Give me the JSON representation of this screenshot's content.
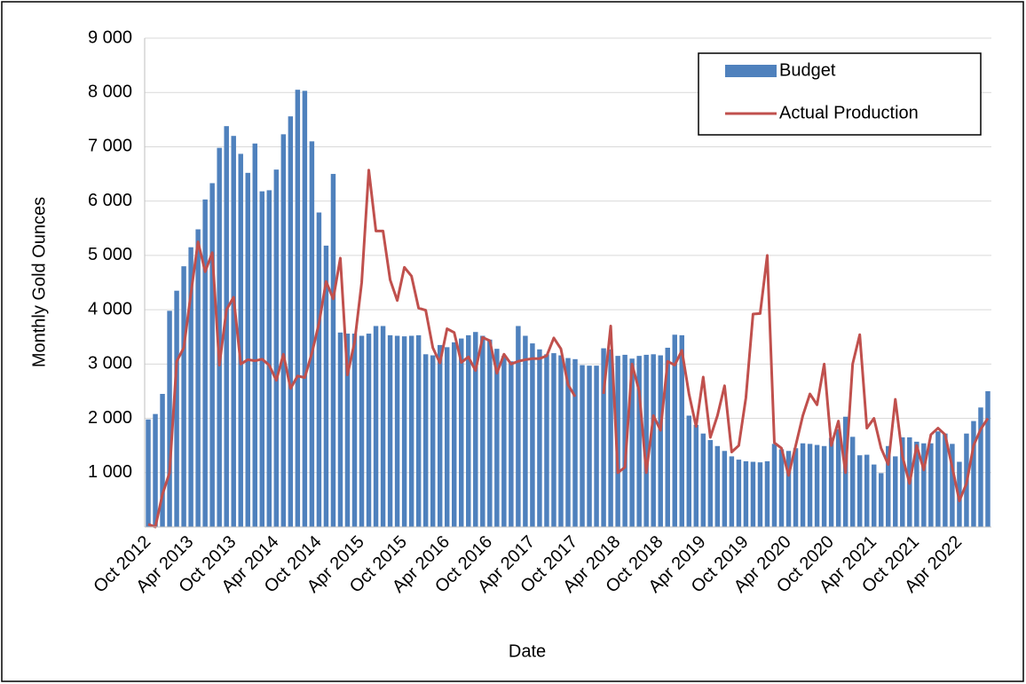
{
  "chart_data": {
    "type": "bar-line",
    "x_label": "Date",
    "y_label": "Monthly Gold Ounces",
    "categories": [
      "Oct 2012",
      null,
      null,
      null,
      null,
      null,
      "Apr 2013",
      null,
      null,
      null,
      null,
      null,
      "Oct 2013",
      null,
      null,
      null,
      null,
      null,
      "Apr 2014",
      null,
      null,
      null,
      null,
      null,
      "Oct 2014",
      null,
      null,
      null,
      null,
      null,
      "Apr 2015",
      null,
      null,
      null,
      null,
      null,
      "Oct 2015",
      null,
      null,
      null,
      null,
      null,
      "Apr 2016",
      null,
      null,
      null,
      null,
      null,
      "Oct 2016",
      null,
      null,
      null,
      null,
      null,
      "Apr 2017",
      null,
      null,
      null,
      null,
      null,
      "Oct 2017",
      null,
      null,
      null,
      null,
      null,
      "Apr 2018",
      null,
      null,
      null,
      null,
      null,
      "Oct 2018",
      null,
      null,
      null,
      null,
      null,
      "Apr 2019",
      null,
      null,
      null,
      null,
      null,
      "Oct 2019",
      null,
      null,
      null,
      null,
      null,
      "Apr 2020",
      null,
      null,
      null,
      null,
      null,
      "Oct 2020",
      null,
      null,
      null,
      null,
      null,
      "Apr 2021",
      null,
      null,
      null,
      null,
      null,
      "Oct 2021",
      null,
      null,
      null,
      null,
      null,
      "Apr 2022",
      null,
      null,
      null,
      null
    ],
    "series": [
      {
        "name": "Budget",
        "kind": "bar",
        "color": "#4f81bd",
        "values": [
          1980,
          2080,
          2450,
          3980,
          4350,
          4800,
          5150,
          5480,
          6030,
          6330,
          6980,
          7380,
          7200,
          6870,
          6520,
          7060,
          6180,
          6200,
          6580,
          7230,
          7560,
          8050,
          8030,
          7100,
          5790,
          5180,
          6500,
          3580,
          3560,
          3560,
          3520,
          3560,
          3700,
          3700,
          3530,
          3520,
          3510,
          3520,
          3530,
          3180,
          3160,
          3350,
          3310,
          3400,
          3470,
          3530,
          3590,
          3520,
          3450,
          3280,
          3150,
          3050,
          3700,
          3520,
          3380,
          3270,
          3180,
          3200,
          3160,
          3110,
          3090,
          2980,
          2970,
          2970,
          3290,
          3270,
          3150,
          3170,
          3100,
          3150,
          3170,
          3180,
          3160,
          3300,
          3540,
          3530,
          2050,
          1880,
          1720,
          1600,
          1490,
          1400,
          1300,
          1240,
          1210,
          1200,
          1190,
          1210,
          1530,
          1430,
          1400,
          1450,
          1540,
          1530,
          1510,
          1490,
          1640,
          1800,
          2030,
          1660,
          1320,
          1330,
          1150,
          990,
          1490,
          1300,
          1650,
          1650,
          1570,
          1540,
          1540,
          1760,
          1720,
          1530,
          1200,
          1720,
          1950,
          2200,
          2500
        ]
      },
      {
        "name": "Actual Production",
        "kind": "line",
        "color": "#c0504d",
        "values": [
          50,
          0,
          600,
          1000,
          3050,
          3300,
          4300,
          5250,
          4700,
          5050,
          2980,
          4000,
          4230,
          3000,
          3080,
          3060,
          3090,
          2980,
          2700,
          3180,
          2550,
          2780,
          2750,
          3200,
          3750,
          4520,
          4200,
          4950,
          2800,
          3400,
          4500,
          6570,
          5450,
          5450,
          4550,
          4170,
          4780,
          4620,
          4030,
          3990,
          3300,
          3020,
          3650,
          3580,
          3030,
          3130,
          2880,
          3490,
          3430,
          2830,
          3180,
          3000,
          3050,
          3080,
          3100,
          3100,
          3150,
          3480,
          3280,
          2620,
          2400,
          null,
          null,
          null,
          2450,
          3700,
          1000,
          1100,
          3000,
          2500,
          1000,
          2050,
          1780,
          3050,
          2980,
          3250,
          2450,
          1850,
          2760,
          1650,
          2050,
          2600,
          1380,
          1500,
          2380,
          3920,
          3930,
          5000,
          1550,
          1450,
          950,
          1500,
          2050,
          2450,
          2250,
          3000,
          1500,
          1950,
          1000,
          3000,
          3540,
          1820,
          2000,
          1450,
          1150,
          2350,
          1300,
          800,
          1500,
          1050,
          1700,
          1820,
          1700,
          1100,
          480,
          800,
          1500,
          1800,
          2000
        ]
      }
    ],
    "ylim": [
      0,
      9000
    ],
    "yticks": [
      {
        "value": 1000,
        "label": "1 000"
      },
      {
        "value": 2000,
        "label": "2 000"
      },
      {
        "value": 3000,
        "label": "3 000"
      },
      {
        "value": 4000,
        "label": "4 000"
      },
      {
        "value": 5000,
        "label": "5 000"
      },
      {
        "value": 6000,
        "label": "6 000"
      },
      {
        "value": 7000,
        "label": "7 000"
      },
      {
        "value": 8000,
        "label": "8 000"
      },
      {
        "value": 9000,
        "label": "9 000"
      }
    ],
    "grid": true,
    "legend": "top-right"
  }
}
